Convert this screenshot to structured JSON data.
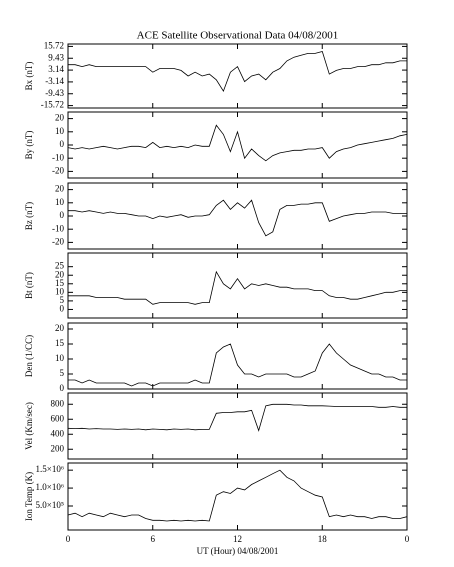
{
  "chart_data": [
    {
      "type": "line",
      "title": "ACE Satellite Observational Data   04/08/2001",
      "ylabel": "Bx (nT)",
      "color": "#000000",
      "x": [
        0,
        0.5,
        1,
        1.5,
        2,
        2.5,
        3,
        3.5,
        4,
        4.5,
        5,
        5.5,
        6,
        6.5,
        7,
        7.5,
        8,
        8.5,
        9,
        9.5,
        10,
        10.5,
        11,
        11.5,
        12,
        12.5,
        13,
        13.5,
        14,
        14.5,
        15,
        15.5,
        16,
        16.5,
        17,
        17.5,
        18,
        18.5,
        19,
        19.5,
        20,
        20.5,
        21,
        21.5,
        22,
        22.5,
        23,
        23.5,
        24
      ],
      "values": [
        6,
        6,
        5,
        6,
        5,
        5,
        5,
        5,
        5,
        5,
        5,
        5,
        2,
        4,
        4,
        4,
        3,
        0,
        2,
        0,
        1,
        -2,
        -8,
        2,
        5,
        -3,
        0,
        1,
        -2,
        2,
        4,
        8,
        10,
        11,
        12,
        12,
        13,
        1,
        3,
        4,
        4,
        5,
        5,
        6,
        6,
        7,
        7,
        8,
        8
      ],
      "xlim": [
        0,
        24
      ],
      "ylim": [
        -17,
        17
      ],
      "yticks": [
        -15.72,
        -9.43,
        -3.14,
        3.14,
        9.43,
        15.72
      ]
    },
    {
      "type": "line",
      "ylabel": "By (nT)",
      "color": "#000000",
      "x": [
        0,
        0.5,
        1,
        1.5,
        2,
        2.5,
        3,
        3.5,
        4,
        4.5,
        5,
        5.5,
        6,
        6.5,
        7,
        7.5,
        8,
        8.5,
        9,
        9.5,
        10,
        10.5,
        11,
        11.5,
        12,
        12.5,
        13,
        13.5,
        14,
        14.5,
        15,
        15.5,
        16,
        16.5,
        17,
        17.5,
        18,
        18.5,
        19,
        19.5,
        20,
        20.5,
        21,
        21.5,
        22,
        22.5,
        23,
        23.5,
        24
      ],
      "values": [
        -2,
        -3,
        -2,
        -3,
        -2,
        -1,
        -2,
        -3,
        -2,
        -1,
        -1,
        -2,
        2,
        -2,
        -1,
        -2,
        -1,
        -2,
        0,
        -1,
        -1,
        15,
        8,
        -5,
        10,
        -10,
        -3,
        -8,
        -12,
        -8,
        -6,
        -5,
        -4,
        -4,
        -3,
        -3,
        -2,
        -10,
        -5,
        -3,
        -2,
        0,
        1,
        2,
        3,
        4,
        5,
        7,
        8
      ],
      "xlim": [
        0,
        24
      ],
      "ylim": [
        -25,
        25
      ],
      "yticks": [
        -20,
        -10,
        0,
        10,
        20
      ]
    },
    {
      "type": "line",
      "ylabel": "Bz (nT)",
      "color": "#000000",
      "x": [
        0,
        0.5,
        1,
        1.5,
        2,
        2.5,
        3,
        3.5,
        4,
        4.5,
        5,
        5.5,
        6,
        6.5,
        7,
        7.5,
        8,
        8.5,
        9,
        9.5,
        10,
        10.5,
        11,
        11.5,
        12,
        12.5,
        13,
        13.5,
        14,
        14.5,
        15,
        15.5,
        16,
        16.5,
        17,
        17.5,
        18,
        18.5,
        19,
        19.5,
        20,
        20.5,
        21,
        21.5,
        22,
        22.5,
        23,
        23.5,
        24
      ],
      "values": [
        4,
        4,
        3,
        4,
        3,
        2,
        3,
        2,
        2,
        1,
        0,
        0,
        -2,
        0,
        -1,
        0,
        1,
        -1,
        0,
        0,
        1,
        8,
        12,
        5,
        10,
        6,
        12,
        -5,
        -15,
        -12,
        5,
        8,
        8,
        9,
        9,
        10,
        10,
        -4,
        -2,
        0,
        1,
        2,
        2,
        3,
        3,
        3,
        2,
        2,
        2
      ],
      "xlim": [
        0,
        24
      ],
      "ylim": [
        -25,
        25
      ],
      "yticks": [
        -20,
        -10,
        0,
        10,
        20
      ]
    },
    {
      "type": "line",
      "ylabel": "Bt (nT)",
      "color": "#000000",
      "x": [
        0,
        0.5,
        1,
        1.5,
        2,
        2.5,
        3,
        3.5,
        4,
        4.5,
        5,
        5.5,
        6,
        6.5,
        7,
        7.5,
        8,
        8.5,
        9,
        9.5,
        10,
        10.5,
        11,
        11.5,
        12,
        12.5,
        13,
        13.5,
        14,
        14.5,
        15,
        15.5,
        16,
        16.5,
        17,
        17.5,
        18,
        18.5,
        19,
        19.5,
        20,
        20.5,
        21,
        21.5,
        22,
        22.5,
        23,
        23.5,
        24
      ],
      "values": [
        8,
        8,
        8,
        8,
        7,
        7,
        7,
        7,
        6,
        6,
        6,
        6,
        3,
        4,
        4,
        4,
        4,
        4,
        3,
        4,
        4,
        22,
        15,
        12,
        18,
        12,
        15,
        14,
        15,
        14,
        13,
        13,
        12,
        12,
        12,
        11,
        11,
        8,
        7,
        7,
        6,
        6,
        7,
        8,
        9,
        10,
        10,
        11,
        11
      ],
      "xlim": [
        0,
        24
      ],
      "ylim": [
        -5,
        33
      ],
      "yticks": [
        0,
        5,
        10,
        15,
        20,
        25
      ]
    },
    {
      "type": "line",
      "ylabel": "Den (1/CC)",
      "color": "#000000",
      "x": [
        0,
        0.5,
        1,
        1.5,
        2,
        2.5,
        3,
        3.5,
        4,
        4.5,
        5,
        5.5,
        6,
        6.5,
        7,
        7.5,
        8,
        8.5,
        9,
        9.5,
        10,
        10.5,
        11,
        11.5,
        12,
        12.5,
        13,
        13.5,
        14,
        14.5,
        15,
        15.5,
        16,
        16.5,
        17,
        17.5,
        18,
        18.5,
        19,
        19.5,
        20,
        20.5,
        21,
        21.5,
        22,
        22.5,
        23,
        23.5,
        24
      ],
      "values": [
        3,
        3,
        2,
        3,
        2,
        2,
        2,
        2,
        2,
        1,
        2,
        2,
        1,
        2,
        2,
        2,
        2,
        2,
        3,
        2,
        2,
        12,
        14,
        15,
        8,
        5,
        5,
        4,
        5,
        5,
        5,
        5,
        4,
        4,
        5,
        6,
        12,
        15,
        12,
        10,
        8,
        7,
        6,
        5,
        5,
        4,
        4,
        3,
        3
      ],
      "xlim": [
        0,
        24
      ],
      "ylim": [
        0,
        22
      ],
      "yticks": [
        0,
        5,
        10,
        15,
        20
      ]
    },
    {
      "type": "line",
      "ylabel": "Vel (Km/sec)",
      "color": "#000000",
      "x": [
        0,
        0.5,
        1,
        1.5,
        2,
        2.5,
        3,
        3.5,
        4,
        4.5,
        5,
        5.5,
        6,
        6.5,
        7,
        7.5,
        8,
        8.5,
        9,
        9.5,
        10,
        10.5,
        11,
        11.5,
        12,
        12.5,
        13,
        13.5,
        14,
        14.5,
        15,
        15.5,
        16,
        16.5,
        17,
        17.5,
        18,
        18.5,
        19,
        19.5,
        20,
        20.5,
        21,
        21.5,
        22,
        22.5,
        23,
        23.5,
        24
      ],
      "values": [
        480,
        475,
        480,
        470,
        475,
        470,
        470,
        465,
        470,
        465,
        470,
        460,
        470,
        465,
        460,
        470,
        465,
        470,
        460,
        465,
        465,
        680,
        690,
        690,
        700,
        700,
        720,
        450,
        780,
        800,
        800,
        800,
        790,
        790,
        780,
        780,
        780,
        775,
        770,
        770,
        770,
        770,
        770,
        770,
        760,
        760,
        770,
        760,
        760
      ],
      "xlim": [
        0,
        24
      ],
      "ylim": [
        70,
        950
      ],
      "yticks": [
        200,
        400,
        600,
        800
      ]
    },
    {
      "type": "line",
      "ylabel": "Ion Temp (K)",
      "xlabel": "UT (Hour)   04/08/2001",
      "color": "#000000",
      "x": [
        0,
        0.5,
        1,
        1.5,
        2,
        2.5,
        3,
        3.5,
        4,
        4.5,
        5,
        5.5,
        6,
        6.5,
        7,
        7.5,
        8,
        8.5,
        9,
        9.5,
        10,
        10.5,
        11,
        11.5,
        12,
        12.5,
        13,
        13.5,
        14,
        14.5,
        15,
        15.5,
        16,
        16.5,
        17,
        17.5,
        18,
        18.5,
        19,
        19.5,
        20,
        20.5,
        21,
        21.5,
        22,
        22.5,
        23,
        23.5,
        24
      ],
      "values": [
        250000,
        300000,
        200000,
        300000,
        250000,
        200000,
        300000,
        250000,
        200000,
        250000,
        250000,
        150000,
        100000,
        100000,
        80000,
        100000,
        80000,
        100000,
        80000,
        100000,
        80000,
        800000,
        900000,
        850000,
        1000000,
        950000,
        1100000,
        1200000,
        1300000,
        1400000,
        1500000,
        1300000,
        1200000,
        1000000,
        900000,
        800000,
        750000,
        200000,
        250000,
        200000,
        250000,
        200000,
        200000,
        150000,
        200000,
        200000,
        150000,
        150000,
        200000
      ],
      "xlim": [
        0,
        24
      ],
      "ylim": [
        -170000,
        1700000
      ],
      "yticks": [
        {
          "value": 500000,
          "label": "5.0×10⁵"
        },
        {
          "value": 1000000,
          "label": "1.0×10⁶"
        },
        {
          "value": 1500000,
          "label": "1.5×10⁶"
        }
      ],
      "xticks": [
        0,
        6,
        12,
        18,
        {
          "value": 24,
          "label": "0"
        }
      ]
    }
  ]
}
